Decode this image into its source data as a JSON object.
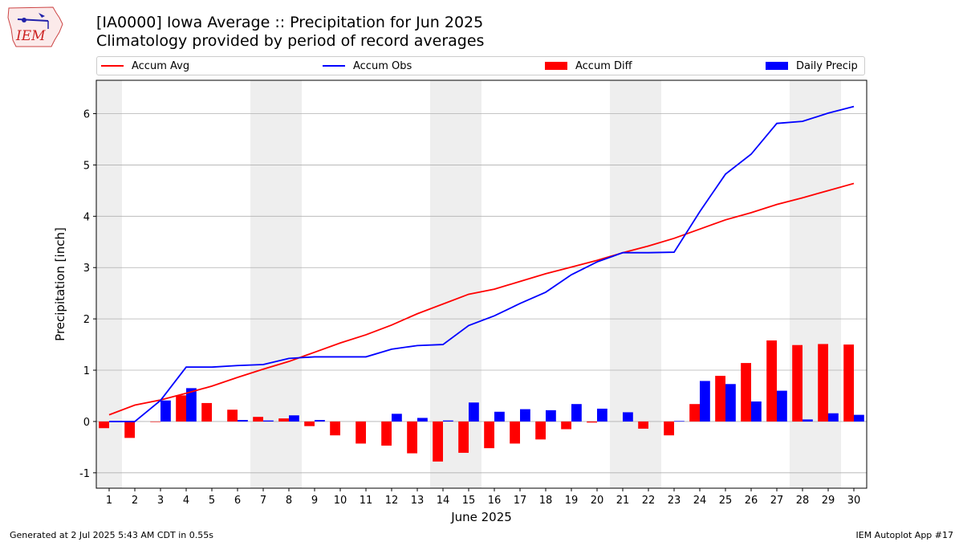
{
  "header": {
    "title_line1": "[IA0000] Iowa Average :: Precipitation for Jun 2025",
    "title_line2": "Climatology provided by period of record averages",
    "logo_text": "IEM"
  },
  "legend": {
    "accum_avg": "Accum Avg",
    "accum_obs": "Accum Obs",
    "accum_diff": "Accum Diff",
    "daily_precip": "Daily Precip"
  },
  "footer": {
    "generated": "Generated at 2 Jul 2025 5:43 AM CDT in 0.55s",
    "app": "IEM Autoplot App #17"
  },
  "colors": {
    "accum_avg": "#ff0000",
    "accum_obs": "#0000ff",
    "accum_diff": "#ff0000",
    "daily_precip": "#0000ff",
    "weekend_shade": "#eeeeee",
    "grid": "#b0b0b0"
  },
  "chart_data": {
    "type": "bar",
    "xlabel": "June 2025",
    "ylabel": "Precipitation [inch]",
    "ylim": [
      -1.3,
      6.65
    ],
    "xlim": [
      0.5,
      30.5
    ],
    "grid": true,
    "legend_position": "top",
    "days": [
      1,
      2,
      3,
      4,
      5,
      6,
      7,
      8,
      9,
      10,
      11,
      12,
      13,
      14,
      15,
      16,
      17,
      18,
      19,
      20,
      21,
      22,
      23,
      24,
      25,
      26,
      27,
      28,
      29,
      30
    ],
    "yticks": [
      -1,
      0,
      1,
      2,
      3,
      4,
      5,
      6
    ],
    "weekend_shading": [
      [
        0.5,
        1.5
      ],
      [
        6.5,
        8.5
      ],
      [
        13.5,
        15.5
      ],
      [
        20.5,
        22.5
      ],
      [
        27.5,
        29.5
      ]
    ],
    "series": [
      {
        "name": "Accum Avg",
        "kind": "line",
        "values": [
          0.13,
          0.32,
          0.42,
          0.55,
          0.69,
          0.86,
          1.02,
          1.17,
          1.35,
          1.53,
          1.69,
          1.88,
          2.1,
          2.29,
          2.48,
          2.58,
          2.73,
          2.88,
          3.01,
          3.14,
          3.29,
          3.42,
          3.57,
          3.75,
          3.93,
          4.07,
          4.23,
          4.36,
          4.5,
          4.64
        ]
      },
      {
        "name": "Accum Obs",
        "kind": "line",
        "values": [
          0.0,
          0.0,
          0.41,
          1.06,
          1.06,
          1.09,
          1.11,
          1.23,
          1.26,
          1.26,
          1.26,
          1.41,
          1.48,
          1.5,
          1.87,
          2.06,
          2.3,
          2.52,
          2.86,
          3.11,
          3.29,
          3.29,
          3.3,
          4.09,
          4.82,
          5.21,
          5.81,
          5.85,
          6.01,
          6.14
        ]
      },
      {
        "name": "Accum Diff",
        "kind": "bar",
        "values": [
          -0.13,
          -0.32,
          -0.01,
          0.51,
          0.36,
          0.23,
          0.09,
          0.06,
          -0.09,
          -0.27,
          -0.43,
          -0.47,
          -0.62,
          -0.78,
          -0.61,
          -0.52,
          -0.43,
          -0.35,
          -0.15,
          -0.02,
          0.0,
          -0.14,
          -0.27,
          0.34,
          0.89,
          1.14,
          1.58,
          1.49,
          1.51,
          1.5
        ]
      },
      {
        "name": "Daily Precip",
        "kind": "bar",
        "values": [
          0.0,
          0.0,
          0.41,
          0.65,
          0.0,
          0.03,
          0.02,
          0.12,
          0.03,
          0.0,
          0.0,
          0.15,
          0.07,
          0.02,
          0.37,
          0.19,
          0.24,
          0.22,
          0.34,
          0.25,
          0.18,
          0.0,
          0.01,
          0.79,
          0.73,
          0.39,
          0.6,
          0.04,
          0.16,
          0.13
        ]
      }
    ]
  }
}
